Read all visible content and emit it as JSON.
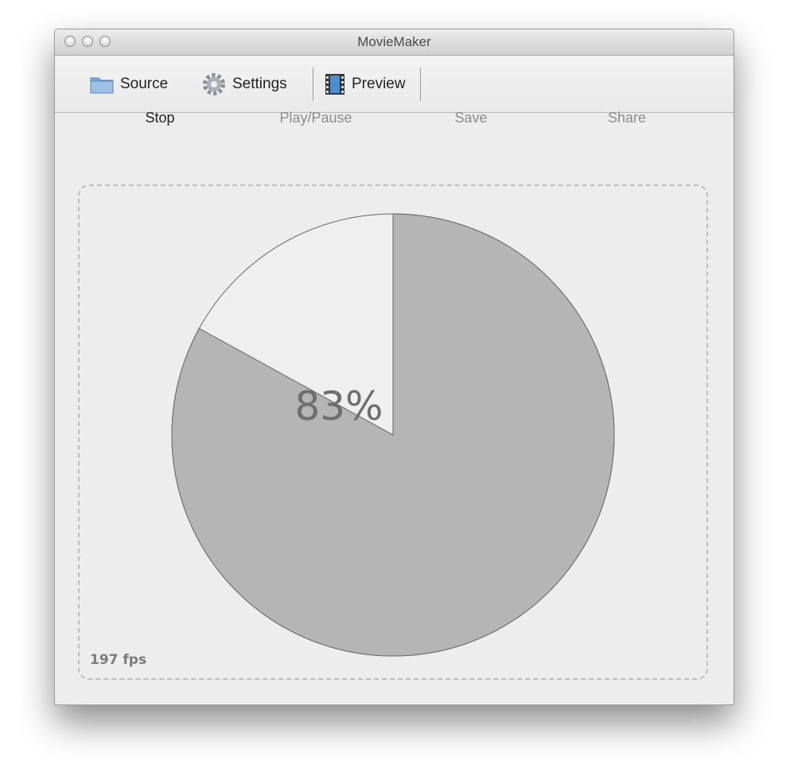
{
  "window": {
    "title": "MovieMaker"
  },
  "toolbar": {
    "items": [
      {
        "label": "Source",
        "icon": "folder-icon"
      },
      {
        "label": "Settings",
        "icon": "gear-icon"
      },
      {
        "label": "Preview",
        "icon": "film-icon",
        "selected": true
      }
    ]
  },
  "actions": [
    {
      "label": "Stop",
      "enabled": true
    },
    {
      "label": "Play/Pause",
      "enabled": false
    },
    {
      "label": "Save",
      "enabled": false
    },
    {
      "label": "Share",
      "enabled": false
    }
  ],
  "progress": {
    "label": "83%",
    "value": 0.83,
    "fill_color": "#b5b5b5",
    "empty_color": "#efefef"
  },
  "status": {
    "fps": "197 fps"
  }
}
